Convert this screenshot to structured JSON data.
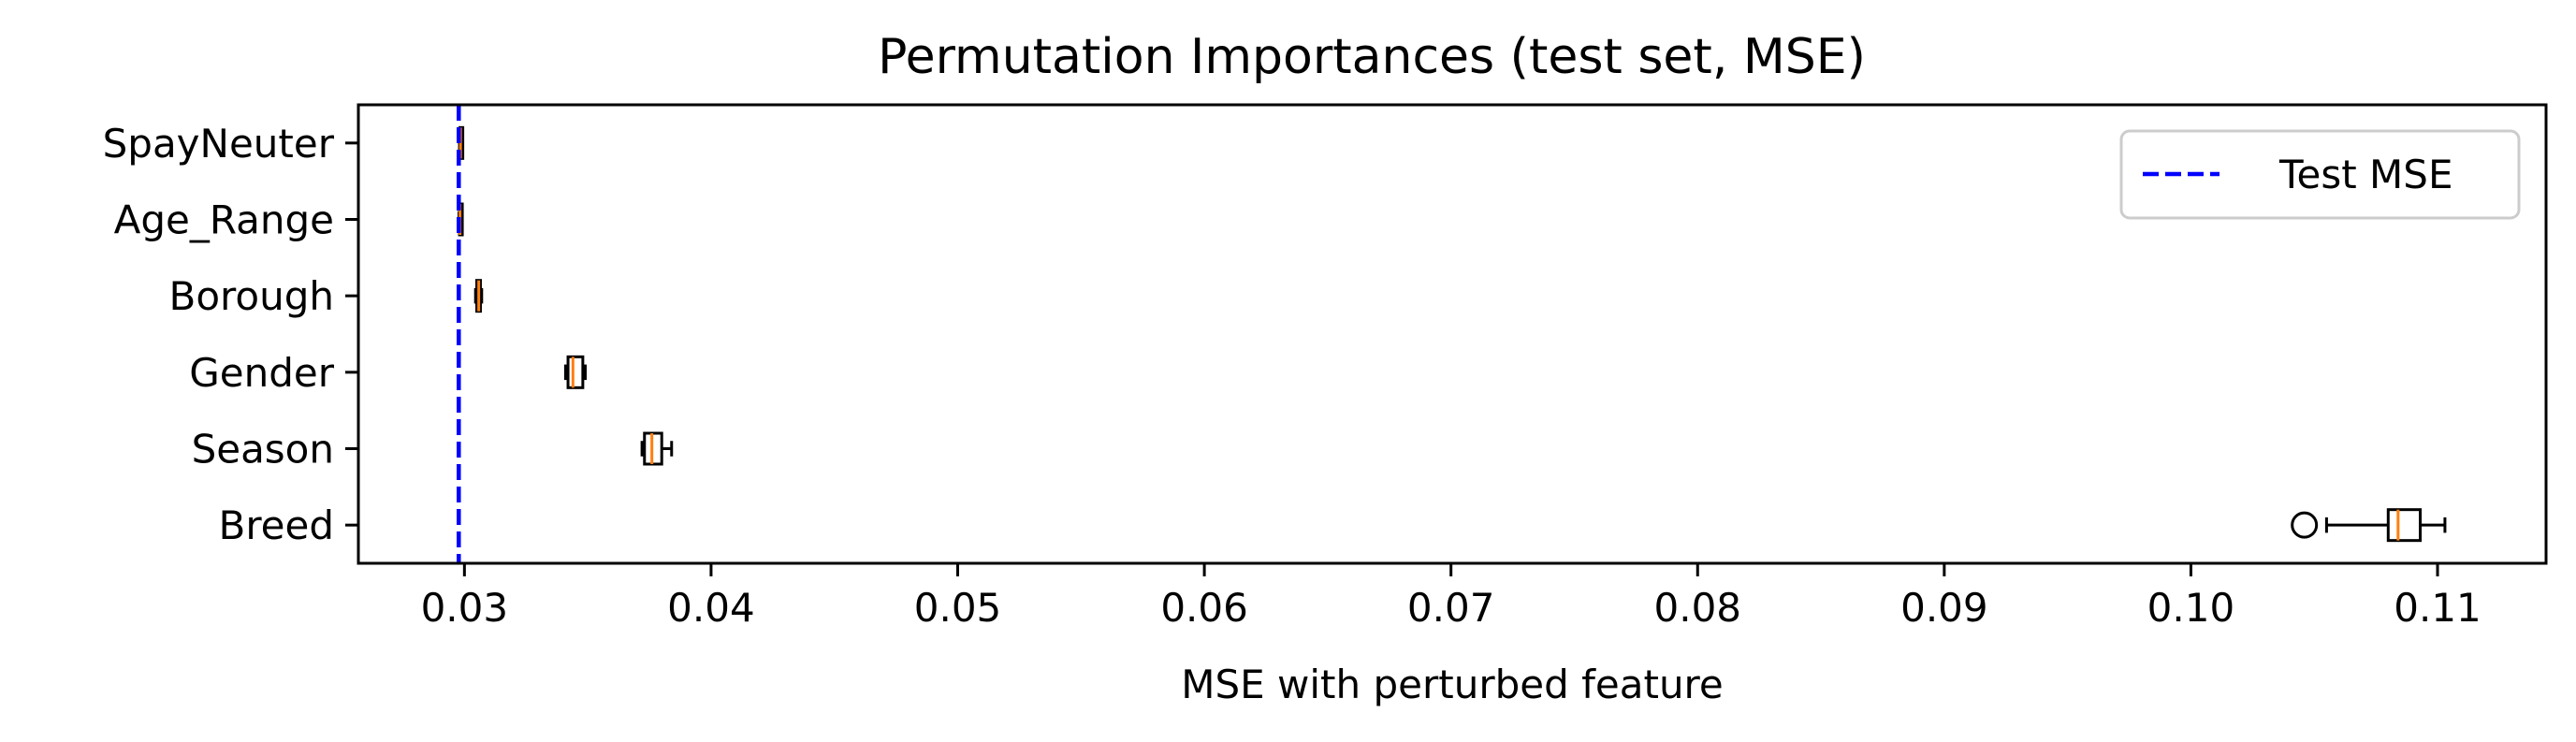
{
  "chart_data": {
    "type": "boxplot",
    "orientation": "horizontal",
    "title": "Permutation Importances (test set, MSE)",
    "xlabel": "MSE with perturbed feature",
    "ylabel": "",
    "xlim": [
      0.0257,
      0.1144
    ],
    "xticks": [
      0.03,
      0.04,
      0.05,
      0.06,
      0.07,
      0.08,
      0.09,
      0.1,
      0.11
    ],
    "xtick_labels": [
      "0.03",
      "0.04",
      "0.05",
      "0.06",
      "0.07",
      "0.08",
      "0.09",
      "0.10",
      "0.11"
    ],
    "categories": [
      "SpayNeuter",
      "Age_Range",
      "Borough",
      "Gender",
      "Season",
      "Breed"
    ],
    "boxes": [
      {
        "label": "SpayNeuter",
        "whislo": 0.0298,
        "q1": 0.02982,
        "med": 0.02984,
        "q3": 0.02987,
        "whishi": 0.0299,
        "fliers": []
      },
      {
        "label": "Age_Range",
        "whislo": 0.02978,
        "q1": 0.0298,
        "med": 0.02982,
        "q3": 0.02985,
        "whishi": 0.02988,
        "fliers": []
      },
      {
        "label": "Borough",
        "whislo": 0.03045,
        "q1": 0.0305,
        "med": 0.03058,
        "q3": 0.03065,
        "whishi": 0.0307,
        "fliers": []
      },
      {
        "label": "Gender",
        "whislo": 0.0341,
        "q1": 0.0342,
        "med": 0.0344,
        "q3": 0.0348,
        "whishi": 0.0349,
        "fliers": []
      },
      {
        "label": "Season",
        "whislo": 0.0372,
        "q1": 0.0373,
        "med": 0.0376,
        "q3": 0.038,
        "whishi": 0.0384,
        "fliers": []
      },
      {
        "label": "Breed",
        "whislo": 0.1055,
        "q1": 0.108,
        "med": 0.1084,
        "q3": 0.1093,
        "whishi": 0.1103,
        "fliers": [
          0.1046
        ]
      }
    ],
    "reference_line": {
      "label": "Test MSE",
      "value": 0.02977,
      "color": "#0000ff",
      "style": "dashed"
    },
    "legend": {
      "position": "top-right",
      "entries": [
        "Test MSE"
      ]
    },
    "colors": {
      "box": "#000000",
      "median": "#ff7f0e",
      "reference": "#0000ff"
    },
    "grid": false
  }
}
